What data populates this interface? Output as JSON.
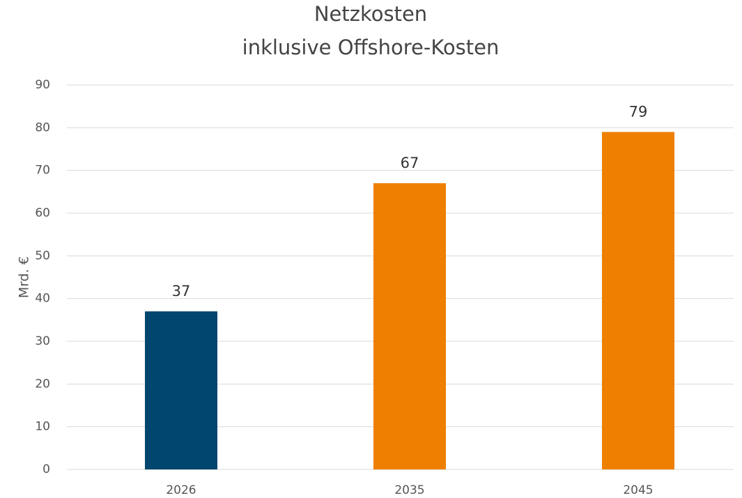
{
  "chart_data": {
    "type": "bar",
    "title": "Netzkosten",
    "subtitle": "inklusive Offshore-Kosten",
    "y_label": "Mrd. €",
    "categories": [
      "2026",
      "2035",
      "2045"
    ],
    "values": [
      37,
      67,
      79
    ],
    "colors": [
      "#00466e",
      "#ee7f00",
      "#ee7f00"
    ],
    "ylim": [
      0,
      90
    ],
    "yticks": [
      0,
      10,
      20,
      30,
      40,
      50,
      60,
      70,
      80,
      90
    ],
    "grid": true
  }
}
